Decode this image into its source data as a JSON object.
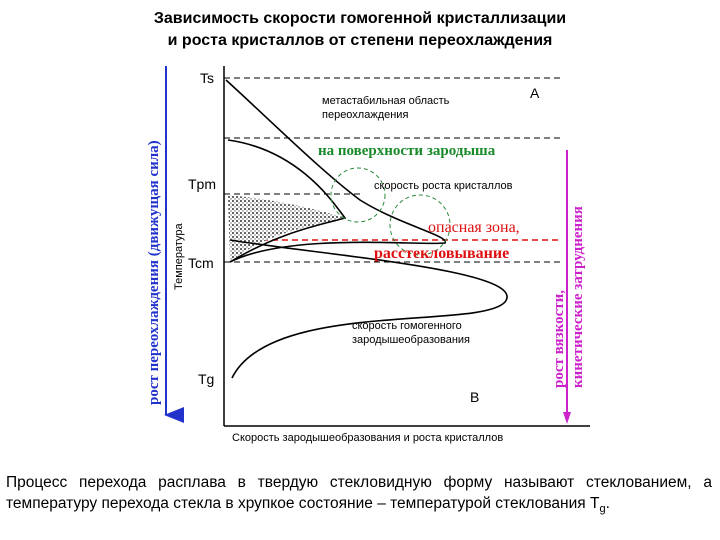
{
  "title": [
    "Зависимость скорости гомогенной кристаллизации",
    "и роста кристаллов от степени переохлаждения"
  ],
  "left_axis_label": "рост переохлаждения (движущая сила)",
  "y_axis_label": "Температура",
  "x_axis_label": "Скорость зародышеобразования и роста кристаллов",
  "levels": [
    "Ts",
    "Tpm",
    "Tcm",
    "Tg"
  ],
  "region_labels": [
    "A",
    "B"
  ],
  "metastable_label": [
    "метастабильная область",
    "переохлаждения"
  ],
  "surface_label": "на поверхности зародыша",
  "growth_label": "скорость роста кристаллов",
  "danger_label": [
    "опасная зона,",
    "расстекловывание"
  ],
  "nucleation_label": [
    "скорость гомогенного",
    "зародышеобразования"
  ],
  "right_axis_label": [
    "рост вязкости,",
    "кинетические затруднения"
  ],
  "paragraph": {
    "text": "Процесс перехода расплава в твердую стекловидную форму называют стеклованием, а температуру перехода стекла в хрупкое состояние – температурой стеклования T",
    "subscript": "g",
    "end": "."
  }
}
